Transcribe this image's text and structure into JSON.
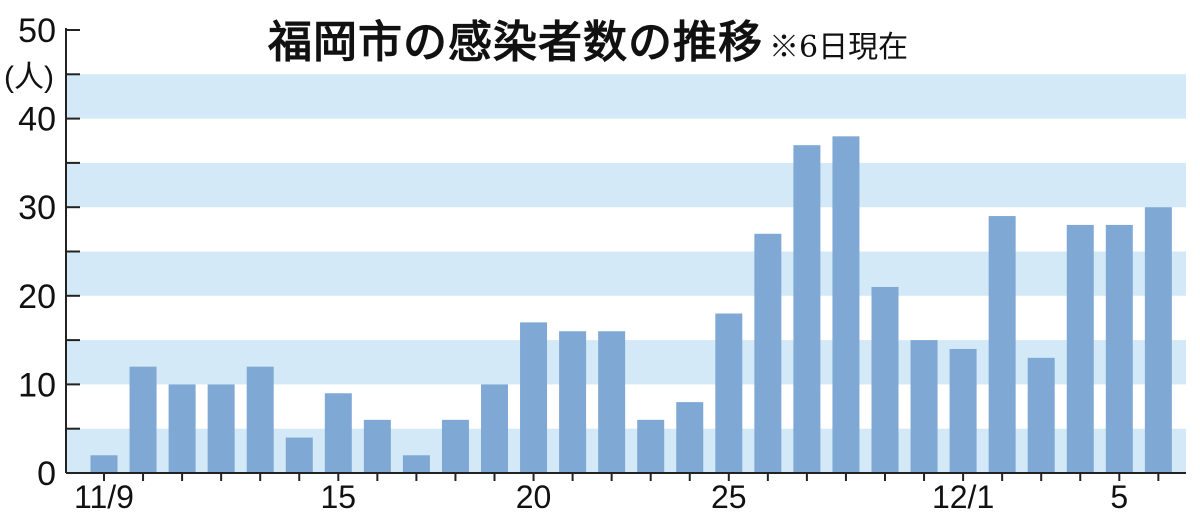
{
  "chart_data": {
    "type": "bar",
    "title": "福岡市の感染者数の推移",
    "note": "※6日現在",
    "ylabel": "(人)",
    "ylim": [
      0,
      50
    ],
    "yticks": [
      0,
      10,
      20,
      30,
      40,
      50
    ],
    "categories": [
      "11/9",
      "11/10",
      "11/11",
      "11/12",
      "11/13",
      "11/14",
      "11/15",
      "11/16",
      "11/17",
      "11/18",
      "11/19",
      "11/20",
      "11/21",
      "11/22",
      "11/23",
      "11/24",
      "11/25",
      "11/26",
      "11/27",
      "11/28",
      "11/29",
      "11/30",
      "12/1",
      "12/2",
      "12/3",
      "12/4",
      "12/5",
      "12/6"
    ],
    "values": [
      2,
      12,
      10,
      10,
      12,
      4,
      9,
      6,
      2,
      6,
      10,
      17,
      16,
      16,
      6,
      8,
      18,
      27,
      37,
      38,
      21,
      15,
      14,
      29,
      13,
      28,
      28,
      30
    ],
    "xtick_labels": [
      {
        "index": 0,
        "label": "11/9"
      },
      {
        "index": 6,
        "label": "15"
      },
      {
        "index": 11,
        "label": "20"
      },
      {
        "index": 16,
        "label": "25"
      },
      {
        "index": 22,
        "label": "12/1"
      },
      {
        "index": 26,
        "label": "5"
      }
    ],
    "band_color": "#d3e9f7",
    "bar_color": "#7fa8d4",
    "grid": "alternating horizontal bands every 5"
  }
}
